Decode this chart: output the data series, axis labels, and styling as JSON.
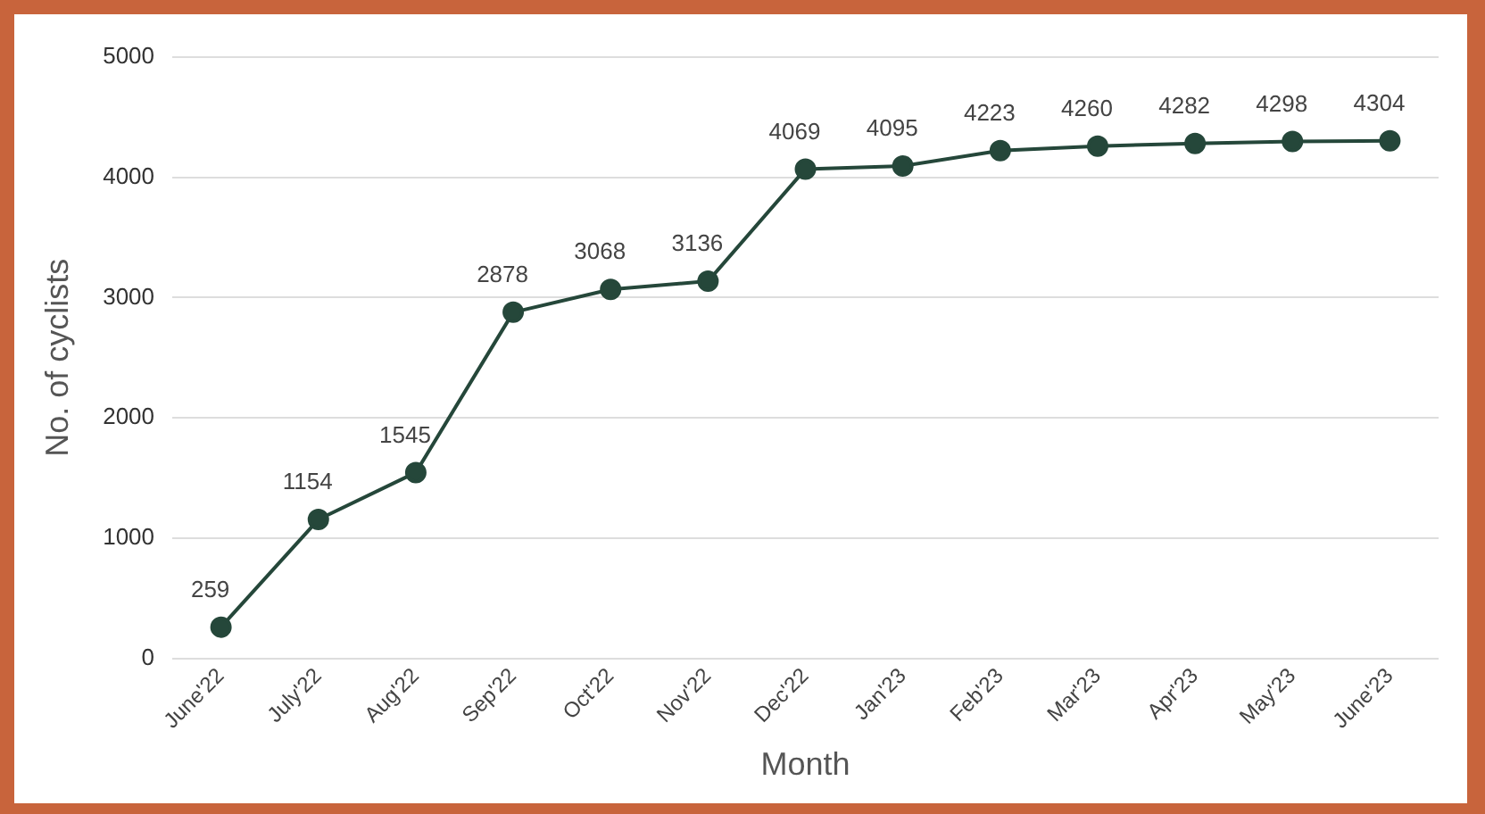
{
  "chart_data": {
    "type": "line",
    "xlabel": "Month",
    "ylabel": "No. of cyclists",
    "categories": [
      "June'22",
      "July'22",
      "Aug'22",
      "Sep'22",
      "Oct'22",
      "Nov'22",
      "Dec'22",
      "Jan'23",
      "Feb'23",
      "Mar'23",
      "Apr'23",
      "May'23",
      "June'23"
    ],
    "series": [
      {
        "color": "#25473a",
        "values": [
          259,
          1154,
          1545,
          2878,
          3068,
          3136,
          4069,
          4095,
          4223,
          4260,
          4282,
          4298,
          4304
        ]
      }
    ],
    "ylim": [
      0,
      5000
    ],
    "yticks": [
      0,
      1000,
      2000,
      3000,
      4000,
      5000
    ],
    "grid": "y",
    "legend": false,
    "marker": "circle",
    "line_style": "solid",
    "data_labels": true
  }
}
